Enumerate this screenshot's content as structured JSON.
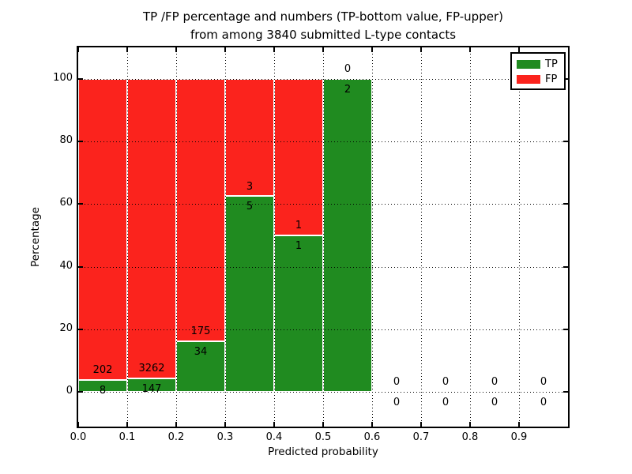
{
  "title": {
    "line1": "TP /FP percentage and numbers (TP-bottom value, FP-upper)",
    "line2": "from among 3840 submitted L-type contacts"
  },
  "legend": {
    "items": [
      {
        "label": "TP",
        "color": "#208b20"
      },
      {
        "label": "FP",
        "color": "#fb231d"
      }
    ]
  },
  "chart_data": {
    "type": "bar",
    "stacked": true,
    "title": "TP /FP percentage and numbers (TP-bottom value, FP-upper) from among 3840 submitted L-type contacts",
    "xlabel": "Predicted probability",
    "ylabel": "Percentage",
    "xlim": [
      0.0,
      1.0
    ],
    "ylim": [
      -11,
      110
    ],
    "grid": true,
    "legend_position": "upper right",
    "x_tick_labels": [
      "0.0",
      "0.1",
      "0.2",
      "0.3",
      "0.4",
      "0.5",
      "0.6",
      "0.7",
      "0.8",
      "0.9"
    ],
    "y_ticks": [
      0,
      20,
      40,
      60,
      80,
      100
    ],
    "bins": [
      {
        "range": [
          0.0,
          0.1
        ],
        "tp": 8,
        "fp": 202
      },
      {
        "range": [
          0.1,
          0.2
        ],
        "tp": 147,
        "fp": 3262
      },
      {
        "range": [
          0.2,
          0.3
        ],
        "tp": 34,
        "fp": 175
      },
      {
        "range": [
          0.3,
          0.4
        ],
        "tp": 5,
        "fp": 3
      },
      {
        "range": [
          0.4,
          0.5
        ],
        "tp": 1,
        "fp": 1
      },
      {
        "range": [
          0.5,
          0.6
        ],
        "tp": 2,
        "fp": 0
      },
      {
        "range": [
          0.6,
          0.7
        ],
        "tp": 0,
        "fp": 0
      },
      {
        "range": [
          0.7,
          0.8
        ],
        "tp": 0,
        "fp": 0
      },
      {
        "range": [
          0.8,
          0.9
        ],
        "tp": 0,
        "fp": 0
      },
      {
        "range": [
          0.9,
          1.0
        ],
        "tp": 0,
        "fp": 0
      }
    ],
    "series": [
      {
        "name": "TP",
        "color": "#208b20",
        "values": [
          3.81,
          4.31,
          16.27,
          62.5,
          50.0,
          100.0,
          0,
          0,
          0,
          0
        ]
      },
      {
        "name": "FP",
        "color": "#fb231d",
        "values": [
          96.19,
          95.69,
          83.73,
          37.5,
          50.0,
          0.0,
          0,
          0,
          0,
          0
        ]
      }
    ]
  }
}
